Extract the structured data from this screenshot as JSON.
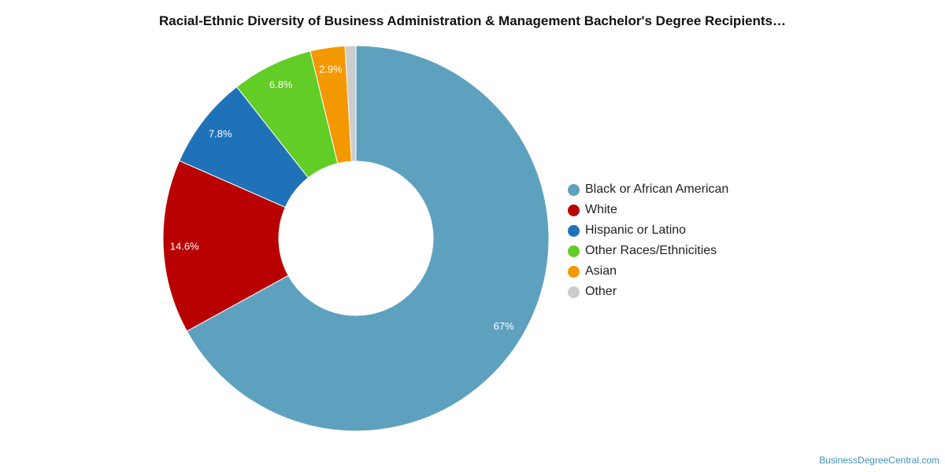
{
  "chart_data": {
    "type": "pie",
    "title": "Racial-Ethnic Diversity of Business Administration & Management Bachelor's Degree Recipients…",
    "categories": [
      "Black or African American",
      "White",
      "Hispanic or Latino",
      "Other Races/Ethnicities",
      "Asian",
      "Other"
    ],
    "values": [
      67,
      14.6,
      7.8,
      6.8,
      2.9,
      0.9
    ],
    "data_labels": [
      "67%",
      "14.6%",
      "7.8%",
      "6.8%",
      "2.9%",
      ""
    ],
    "colors": [
      "#5ea1bf",
      "#b80000",
      "#1f72b8",
      "#62cd26",
      "#f49800",
      "#cccccc"
    ],
    "donut": true,
    "legend_position": "right"
  },
  "credit": "BusinessDegreeCentral.com"
}
